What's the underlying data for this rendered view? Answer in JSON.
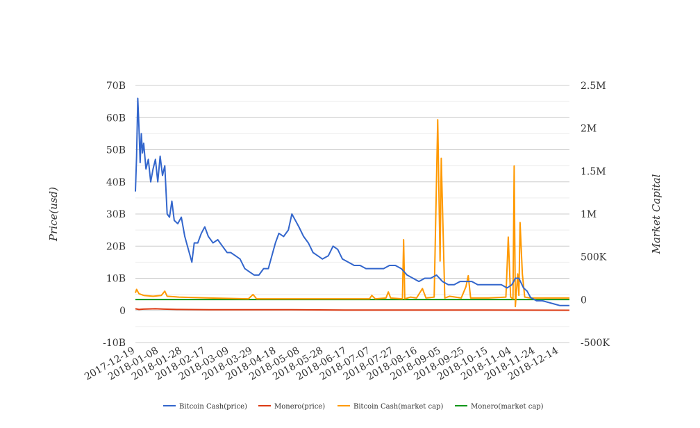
{
  "chart_data": {
    "type": "line",
    "title": "",
    "xlabel": "",
    "ylabel": "Price(usd)",
    "y2label": "Market Capital",
    "y_ticks": [
      "70B",
      "60B",
      "50B",
      "40B",
      "30B",
      "20B",
      "10B",
      "0",
      "-10B"
    ],
    "y2_ticks": [
      "2.5M",
      "2M",
      "1.5M",
      "1M",
      "500K",
      "0",
      "-500K"
    ],
    "x_ticks": [
      "2017-12-19",
      "2018-01-08",
      "2018-01-28",
      "2018-02-17",
      "2018-03-09",
      "2018-03-29",
      "2018-04-18",
      "2018-05-08",
      "2018-05-28",
      "2018-06-17",
      "2018-07-07",
      "2018-07-27",
      "2018-08-16",
      "2018-09-05",
      "2018-09-25",
      "2018-10-15",
      "2018-11-04",
      "2018-11-24",
      "2018-12-14"
    ],
    "x_range": [
      "2017-12-19",
      "2018-12-23"
    ],
    "ylim": [
      -10,
      70
    ],
    "y2lim": [
      -500000,
      2500000
    ],
    "grid": true,
    "legend_position": "bottom",
    "series": [
      {
        "name": "Bitcoin Cash(price)",
        "color": "#3366cc",
        "axis": "left",
        "points": [
          [
            "2017-12-19",
            37
          ],
          [
            "2017-12-20",
            48
          ],
          [
            "2017-12-21",
            66
          ],
          [
            "2017-12-22",
            57
          ],
          [
            "2017-12-23",
            46
          ],
          [
            "2017-12-24",
            55
          ],
          [
            "2017-12-25",
            49
          ],
          [
            "2017-12-26",
            52
          ],
          [
            "2017-12-28",
            44
          ],
          [
            "2017-12-30",
            47
          ],
          [
            "2018-01-01",
            40
          ],
          [
            "2018-01-03",
            44
          ],
          [
            "2018-01-05",
            47
          ],
          [
            "2018-01-07",
            40
          ],
          [
            "2018-01-09",
            48
          ],
          [
            "2018-01-11",
            42
          ],
          [
            "2018-01-13",
            45
          ],
          [
            "2018-01-15",
            30
          ],
          [
            "2018-01-17",
            29
          ],
          [
            "2018-01-19",
            34
          ],
          [
            "2018-01-21",
            28
          ],
          [
            "2018-01-24",
            27
          ],
          [
            "2018-01-27",
            29
          ],
          [
            "2018-01-30",
            23
          ],
          [
            "2018-02-02",
            19
          ],
          [
            "2018-02-05",
            15
          ],
          [
            "2018-02-07",
            21
          ],
          [
            "2018-02-10",
            21
          ],
          [
            "2018-02-13",
            24
          ],
          [
            "2018-02-16",
            26
          ],
          [
            "2018-02-19",
            23
          ],
          [
            "2018-02-23",
            21
          ],
          [
            "2018-02-27",
            22
          ],
          [
            "2018-03-03",
            20
          ],
          [
            "2018-03-07",
            18
          ],
          [
            "2018-03-10",
            18
          ],
          [
            "2018-03-14",
            17
          ],
          [
            "2018-03-18",
            16
          ],
          [
            "2018-03-22",
            13
          ],
          [
            "2018-03-26",
            12
          ],
          [
            "2018-03-30",
            11
          ],
          [
            "2018-04-03",
            11
          ],
          [
            "2018-04-07",
            13
          ],
          [
            "2018-04-11",
            13
          ],
          [
            "2018-04-14",
            17
          ],
          [
            "2018-04-17",
            21
          ],
          [
            "2018-04-20",
            24
          ],
          [
            "2018-04-24",
            23
          ],
          [
            "2018-04-28",
            25
          ],
          [
            "2018-05-01",
            30
          ],
          [
            "2018-05-04",
            28
          ],
          [
            "2018-05-07",
            26
          ],
          [
            "2018-05-11",
            23
          ],
          [
            "2018-05-15",
            21
          ],
          [
            "2018-05-19",
            18
          ],
          [
            "2018-05-23",
            17
          ],
          [
            "2018-05-27",
            16
          ],
          [
            "2018-06-01",
            17
          ],
          [
            "2018-06-05",
            20
          ],
          [
            "2018-06-09",
            19
          ],
          [
            "2018-06-13",
            16
          ],
          [
            "2018-06-18",
            15
          ],
          [
            "2018-06-23",
            14
          ],
          [
            "2018-06-28",
            14
          ],
          [
            "2018-07-03",
            13
          ],
          [
            "2018-07-08",
            13
          ],
          [
            "2018-07-13",
            13
          ],
          [
            "2018-07-18",
            13
          ],
          [
            "2018-07-23",
            14
          ],
          [
            "2018-07-28",
            14
          ],
          [
            "2018-08-02",
            13
          ],
          [
            "2018-08-07",
            11
          ],
          [
            "2018-08-12",
            10
          ],
          [
            "2018-08-17",
            9
          ],
          [
            "2018-08-22",
            10
          ],
          [
            "2018-08-27",
            10
          ],
          [
            "2018-09-01",
            11
          ],
          [
            "2018-09-06",
            9
          ],
          [
            "2018-09-11",
            8
          ],
          [
            "2018-09-16",
            8
          ],
          [
            "2018-09-21",
            9
          ],
          [
            "2018-09-26",
            9
          ],
          [
            "2018-10-01",
            9
          ],
          [
            "2018-10-06",
            8
          ],
          [
            "2018-10-11",
            8
          ],
          [
            "2018-10-16",
            8
          ],
          [
            "2018-10-21",
            8
          ],
          [
            "2018-10-26",
            8
          ],
          [
            "2018-10-31",
            7
          ],
          [
            "2018-11-04",
            8
          ],
          [
            "2018-11-07",
            10
          ],
          [
            "2018-11-10",
            10
          ],
          [
            "2018-11-14",
            7
          ],
          [
            "2018-11-17",
            6
          ],
          [
            "2018-11-20",
            4
          ],
          [
            "2018-11-25",
            3
          ],
          [
            "2018-11-30",
            3
          ],
          [
            "2018-12-05",
            2.5
          ],
          [
            "2018-12-10",
            2
          ],
          [
            "2018-12-15",
            1.5
          ],
          [
            "2018-12-20",
            1.5
          ],
          [
            "2018-12-23",
            1.5
          ]
        ]
      },
      {
        "name": "Monero(price)",
        "color": "#dc3912",
        "axis": "left",
        "points": [
          [
            "2017-12-19",
            0.5
          ],
          [
            "2017-12-22",
            0.3
          ],
          [
            "2017-12-26",
            0.4
          ],
          [
            "2018-01-05",
            0.5
          ],
          [
            "2018-01-12",
            0.4
          ],
          [
            "2018-01-25",
            0.3
          ],
          [
            "2018-02-20",
            0.2
          ],
          [
            "2018-03-20",
            0.2
          ],
          [
            "2018-05-01",
            0.2
          ],
          [
            "2018-06-15",
            0.1
          ],
          [
            "2018-08-15",
            0.1
          ],
          [
            "2018-10-15",
            0.1
          ],
          [
            "2018-12-23",
            0.05
          ]
        ]
      },
      {
        "name": "Bitcoin Cash(market cap)",
        "color": "#ff9900",
        "axis": "right",
        "points": [
          [
            "2017-12-19",
            80000
          ],
          [
            "2017-12-20",
            120000
          ],
          [
            "2017-12-22",
            70000
          ],
          [
            "2017-12-26",
            50000
          ],
          [
            "2018-01-03",
            40000
          ],
          [
            "2018-01-10",
            50000
          ],
          [
            "2018-01-13",
            100000
          ],
          [
            "2018-01-15",
            40000
          ],
          [
            "2018-01-25",
            30000
          ],
          [
            "2018-02-20",
            20000
          ],
          [
            "2018-03-25",
            10000
          ],
          [
            "2018-03-29",
            60000
          ],
          [
            "2018-04-01",
            10000
          ],
          [
            "2018-05-10",
            10000
          ],
          [
            "2018-07-06",
            10000
          ],
          [
            "2018-07-08",
            50000
          ],
          [
            "2018-07-11",
            10000
          ],
          [
            "2018-07-20",
            20000
          ],
          [
            "2018-07-22",
            90000
          ],
          [
            "2018-07-24",
            20000
          ],
          [
            "2018-08-03",
            10000
          ],
          [
            "2018-08-04",
            700000
          ],
          [
            "2018-08-05",
            10000
          ],
          [
            "2018-08-10",
            30000
          ],
          [
            "2018-08-15",
            20000
          ],
          [
            "2018-08-20",
            130000
          ],
          [
            "2018-08-23",
            20000
          ],
          [
            "2018-08-30",
            30000
          ],
          [
            "2018-09-02",
            2100000
          ],
          [
            "2018-09-04",
            450000
          ],
          [
            "2018-09-05",
            1650000
          ],
          [
            "2018-09-08",
            20000
          ],
          [
            "2018-09-12",
            40000
          ],
          [
            "2018-09-22",
            20000
          ],
          [
            "2018-09-26",
            150000
          ],
          [
            "2018-09-28",
            280000
          ],
          [
            "2018-09-30",
            20000
          ],
          [
            "2018-10-15",
            20000
          ],
          [
            "2018-10-30",
            30000
          ],
          [
            "2018-11-01",
            730000
          ],
          [
            "2018-11-03",
            30000
          ],
          [
            "2018-11-05",
            10000
          ],
          [
            "2018-11-06",
            1560000
          ],
          [
            "2018-11-07",
            -80000
          ],
          [
            "2018-11-09",
            300000
          ],
          [
            "2018-11-10",
            50000
          ],
          [
            "2018-11-11",
            900000
          ],
          [
            "2018-11-13",
            300000
          ],
          [
            "2018-11-15",
            30000
          ],
          [
            "2018-11-20",
            20000
          ],
          [
            "2018-12-05",
            20000
          ],
          [
            "2018-12-23",
            20000
          ]
        ]
      },
      {
        "name": "Monero(market cap)",
        "color": "#109618",
        "axis": "right",
        "points": [
          [
            "2017-12-19",
            2000
          ],
          [
            "2018-12-23",
            2000
          ]
        ]
      }
    ]
  }
}
